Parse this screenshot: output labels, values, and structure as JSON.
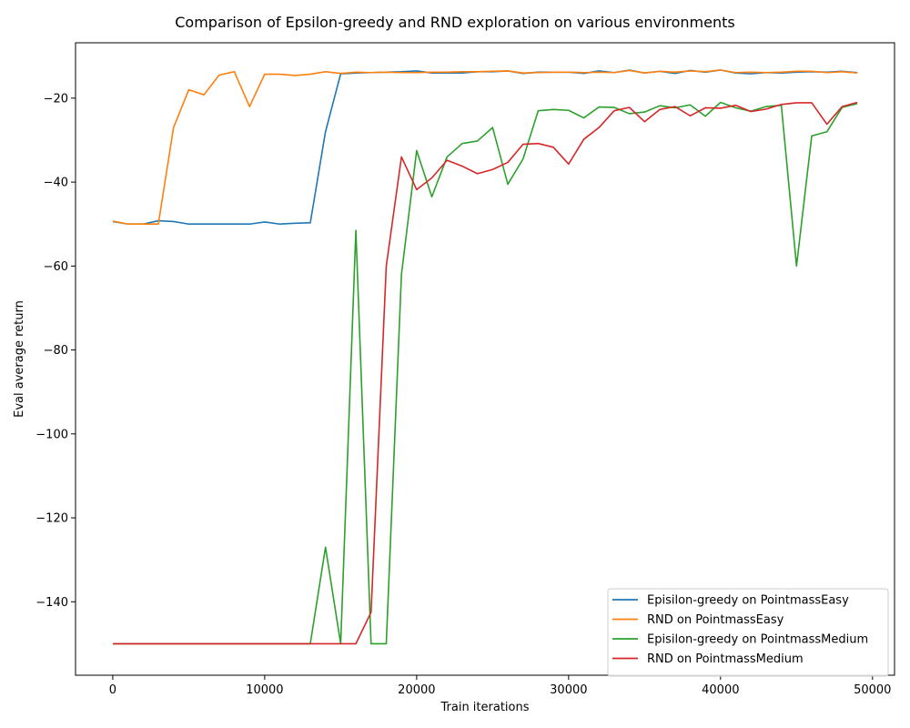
{
  "chart_data": {
    "type": "line",
    "title": "Comparison of Epsilon-greedy and RND exploration on various environments",
    "xlabel": "Train iterations",
    "ylabel": "Eval average return",
    "xlim": [
      -2450,
      51450
    ],
    "ylim": [
      -157.5,
      -6.8
    ],
    "xticks": [
      0,
      10000,
      20000,
      30000,
      40000,
      50000
    ],
    "xtick_labels": [
      "0",
      "10000",
      "20000",
      "30000",
      "40000",
      "50000"
    ],
    "yticks": [
      -140,
      -120,
      -100,
      -80,
      -60,
      -40,
      -20
    ],
    "ytick_labels": [
      "−140",
      "−120",
      "−100",
      "−80",
      "−60",
      "−40",
      "−20"
    ],
    "grid": false,
    "legend_position": "bottom-right",
    "x": [
      0,
      1000,
      2000,
      3000,
      4000,
      5000,
      6000,
      7000,
      8000,
      9000,
      10000,
      11000,
      12000,
      13000,
      14000,
      15000,
      16000,
      17000,
      18000,
      19000,
      20000,
      21000,
      22000,
      23000,
      24000,
      25000,
      26000,
      27000,
      28000,
      29000,
      30000,
      31000,
      32000,
      33000,
      34000,
      35000,
      36000,
      37000,
      38000,
      39000,
      40000,
      41000,
      42000,
      43000,
      44000,
      45000,
      46000,
      47000,
      48000,
      49000
    ],
    "series": [
      {
        "name": "Episilon-greedy on PointmassEasy",
        "color": "#1f77b4",
        "values": [
          -49.4,
          -50.0,
          -50.0,
          -49.2,
          -49.4,
          -50.0,
          -50.0,
          -50.0,
          -50.0,
          -50.0,
          -49.5,
          -50.0,
          -49.8,
          -49.7,
          -28.0,
          -14.2,
          -14.0,
          -13.9,
          -13.8,
          -13.7,
          -13.5,
          -14.0,
          -14.0,
          -14.0,
          -13.7,
          -13.7,
          -13.5,
          -14.1,
          -13.8,
          -13.8,
          -13.8,
          -14.1,
          -13.5,
          -13.9,
          -13.3,
          -14.0,
          -13.6,
          -14.1,
          -13.4,
          -13.8,
          -13.3,
          -14.0,
          -14.2,
          -13.9,
          -14.0,
          -13.8,
          -13.7,
          -13.8,
          -13.6,
          -13.9
        ]
      },
      {
        "name": "RND on PointmassEasy",
        "color": "#ff7f0e",
        "values": [
          -49.3,
          -50.0,
          -50.0,
          -50.0,
          -27.0,
          -18.0,
          -19.2,
          -14.5,
          -13.7,
          -22.0,
          -14.3,
          -14.3,
          -14.6,
          -14.3,
          -13.7,
          -14.1,
          -13.8,
          -13.9,
          -13.8,
          -13.9,
          -13.9,
          -13.8,
          -13.8,
          -13.7,
          -13.7,
          -13.6,
          -13.5,
          -14.0,
          -13.9,
          -13.8,
          -13.8,
          -13.9,
          -13.8,
          -13.9,
          -13.4,
          -14.0,
          -13.6,
          -13.8,
          -13.5,
          -13.7,
          -13.3,
          -13.9,
          -13.8,
          -13.9,
          -13.8,
          -13.6,
          -13.6,
          -13.9,
          -13.7,
          -14.0
        ]
      },
      {
        "name": "Episilon-greedy on PointmassMedium",
        "color": "#2ca02c",
        "values": [
          -150.0,
          -150.0,
          -150.0,
          -150.0,
          -150.0,
          -150.0,
          -150.0,
          -150.0,
          -150.0,
          -150.0,
          -150.0,
          -150.0,
          -150.0,
          -150.0,
          -127.0,
          -150.0,
          -51.5,
          -150.0,
          -150.0,
          -62.0,
          -32.5,
          -43.5,
          -34.0,
          -30.8,
          -30.2,
          -27.0,
          -40.5,
          -34.5,
          -23.0,
          -22.7,
          -22.9,
          -24.7,
          -22.1,
          -22.2,
          -23.7,
          -23.3,
          -21.8,
          -22.3,
          -21.6,
          -24.3,
          -21.0,
          -22.3,
          -23.1,
          -22.0,
          -21.7,
          -60.0,
          -29.0,
          -28.0,
          -22.2,
          -21.3
        ]
      },
      {
        "name": "RND on PointmassMedium",
        "color": "#d62728",
        "values": [
          -150.0,
          -150.0,
          -150.0,
          -150.0,
          -150.0,
          -150.0,
          -150.0,
          -150.0,
          -150.0,
          -150.0,
          -150.0,
          -150.0,
          -150.0,
          -150.0,
          -150.0,
          -150.0,
          -150.0,
          -142.5,
          -60.0,
          -34.0,
          -41.8,
          -39.0,
          -34.8,
          -36.2,
          -38.0,
          -37.0,
          -35.3,
          -31.0,
          -30.8,
          -31.7,
          -35.7,
          -29.8,
          -27.0,
          -23.0,
          -22.2,
          -25.6,
          -22.7,
          -22.0,
          -24.2,
          -22.3,
          -22.4,
          -21.7,
          -23.2,
          -22.6,
          -21.5,
          -21.1,
          -21.1,
          -26.2,
          -22.0,
          -21.0
        ]
      }
    ]
  }
}
